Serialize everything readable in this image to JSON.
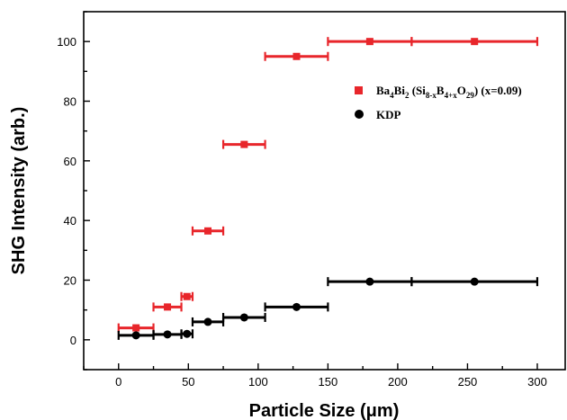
{
  "chart_data": {
    "type": "scatter",
    "xlabel": "Particle Size (μm)",
    "ylabel": "SHG Intensity (arb.)",
    "xlim": [
      -25,
      320
    ],
    "ylim": [
      -10,
      110
    ],
    "xticks": [
      "0",
      "50",
      "100",
      "150",
      "200",
      "250",
      "300"
    ],
    "yticks": [
      "0",
      "20",
      "40",
      "60",
      "80",
      "100"
    ],
    "legend_position": "right",
    "series": [
      {
        "name": "Ba4Bi2 (Si8-xB4+xO29) (x=0.09)",
        "name_parts": {
          "a": "Ba",
          "a_sub": "4",
          "b": "Bi",
          "b_sub": "2",
          "c": " (Si",
          "c_sub": "8-x",
          "d": "B",
          "d_sub": "4+x",
          "e": "O",
          "e_sub": "29",
          "f": ") (x=0.09)"
        },
        "marker": "square",
        "color": "#e8262b",
        "points": [
          {
            "x": 12.5,
            "y": 4,
            "xmin": 0,
            "xmax": 25
          },
          {
            "x": 35,
            "y": 11,
            "xmin": 25,
            "xmax": 45
          },
          {
            "x": 49,
            "y": 14.5,
            "xmin": 45,
            "xmax": 53
          },
          {
            "x": 64,
            "y": 36.5,
            "xmin": 53,
            "xmax": 75
          },
          {
            "x": 90,
            "y": 65.5,
            "xmin": 75,
            "xmax": 105
          },
          {
            "x": 127.5,
            "y": 95,
            "xmin": 105,
            "xmax": 150
          },
          {
            "x": 180,
            "y": 100,
            "xmin": 150,
            "xmax": 210
          },
          {
            "x": 255,
            "y": 100,
            "xmin": 210,
            "xmax": 300
          }
        ]
      },
      {
        "name": "KDP",
        "marker": "circle",
        "color": "#000000",
        "points": [
          {
            "x": 12.5,
            "y": 1.5,
            "xmin": 0,
            "xmax": 25
          },
          {
            "x": 35,
            "y": 1.8,
            "xmin": 25,
            "xmax": 45
          },
          {
            "x": 49,
            "y": 2,
            "xmin": 45,
            "xmax": 53
          },
          {
            "x": 64,
            "y": 6,
            "xmin": 53,
            "xmax": 75
          },
          {
            "x": 90,
            "y": 7.5,
            "xmin": 75,
            "xmax": 105
          },
          {
            "x": 127.5,
            "y": 11,
            "xmin": 105,
            "xmax": 150
          },
          {
            "x": 180,
            "y": 19.5,
            "xmin": 150,
            "xmax": 210
          },
          {
            "x": 255,
            "y": 19.5,
            "xmin": 210,
            "xmax": 300
          }
        ]
      }
    ]
  }
}
